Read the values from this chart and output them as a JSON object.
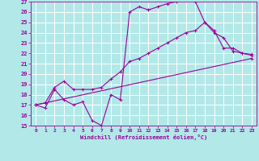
{
  "xlabel": "Windchill (Refroidissement éolien,°C)",
  "xlim": [
    -0.5,
    23.5
  ],
  "ylim": [
    15,
    27
  ],
  "xticks": [
    0,
    1,
    2,
    3,
    4,
    5,
    6,
    7,
    8,
    9,
    10,
    11,
    12,
    13,
    14,
    15,
    16,
    17,
    18,
    19,
    20,
    21,
    22,
    23
  ],
  "yticks": [
    15,
    16,
    17,
    18,
    19,
    20,
    21,
    22,
    23,
    24,
    25,
    26,
    27
  ],
  "bg_color": "#b2e8e8",
  "grid_color": "#ffffff",
  "line_color": "#990099",
  "curves": [
    {
      "x": [
        0,
        1,
        2,
        3,
        4,
        5,
        6,
        7,
        8,
        9,
        10,
        11,
        12,
        13,
        14,
        15,
        16,
        17,
        18,
        19,
        20,
        21,
        22,
        23
      ],
      "y": [
        17,
        16.7,
        18.5,
        17.5,
        17,
        17.3,
        15.5,
        15,
        18,
        17.5,
        26,
        26.5,
        26.2,
        26.5,
        26.8,
        27,
        27.2,
        27,
        25,
        24.2,
        22.5,
        22.5,
        22,
        21.9
      ]
    },
    {
      "x": [
        0,
        1,
        2,
        3,
        4,
        5,
        6,
        7,
        8,
        9,
        10,
        11,
        12,
        13,
        14,
        15,
        16,
        17,
        18,
        19,
        20,
        21,
        22,
        23
      ],
      "y": [
        17,
        17.2,
        18.7,
        19.3,
        18.5,
        18.5,
        18.5,
        18.7,
        19.5,
        20.2,
        21.2,
        21.5,
        22,
        22.5,
        23,
        23.5,
        24,
        24.2,
        25,
        24,
        23.5,
        22.2,
        22,
        21.8
      ]
    },
    {
      "x": [
        0,
        23
      ],
      "y": [
        17,
        21.5
      ]
    }
  ]
}
